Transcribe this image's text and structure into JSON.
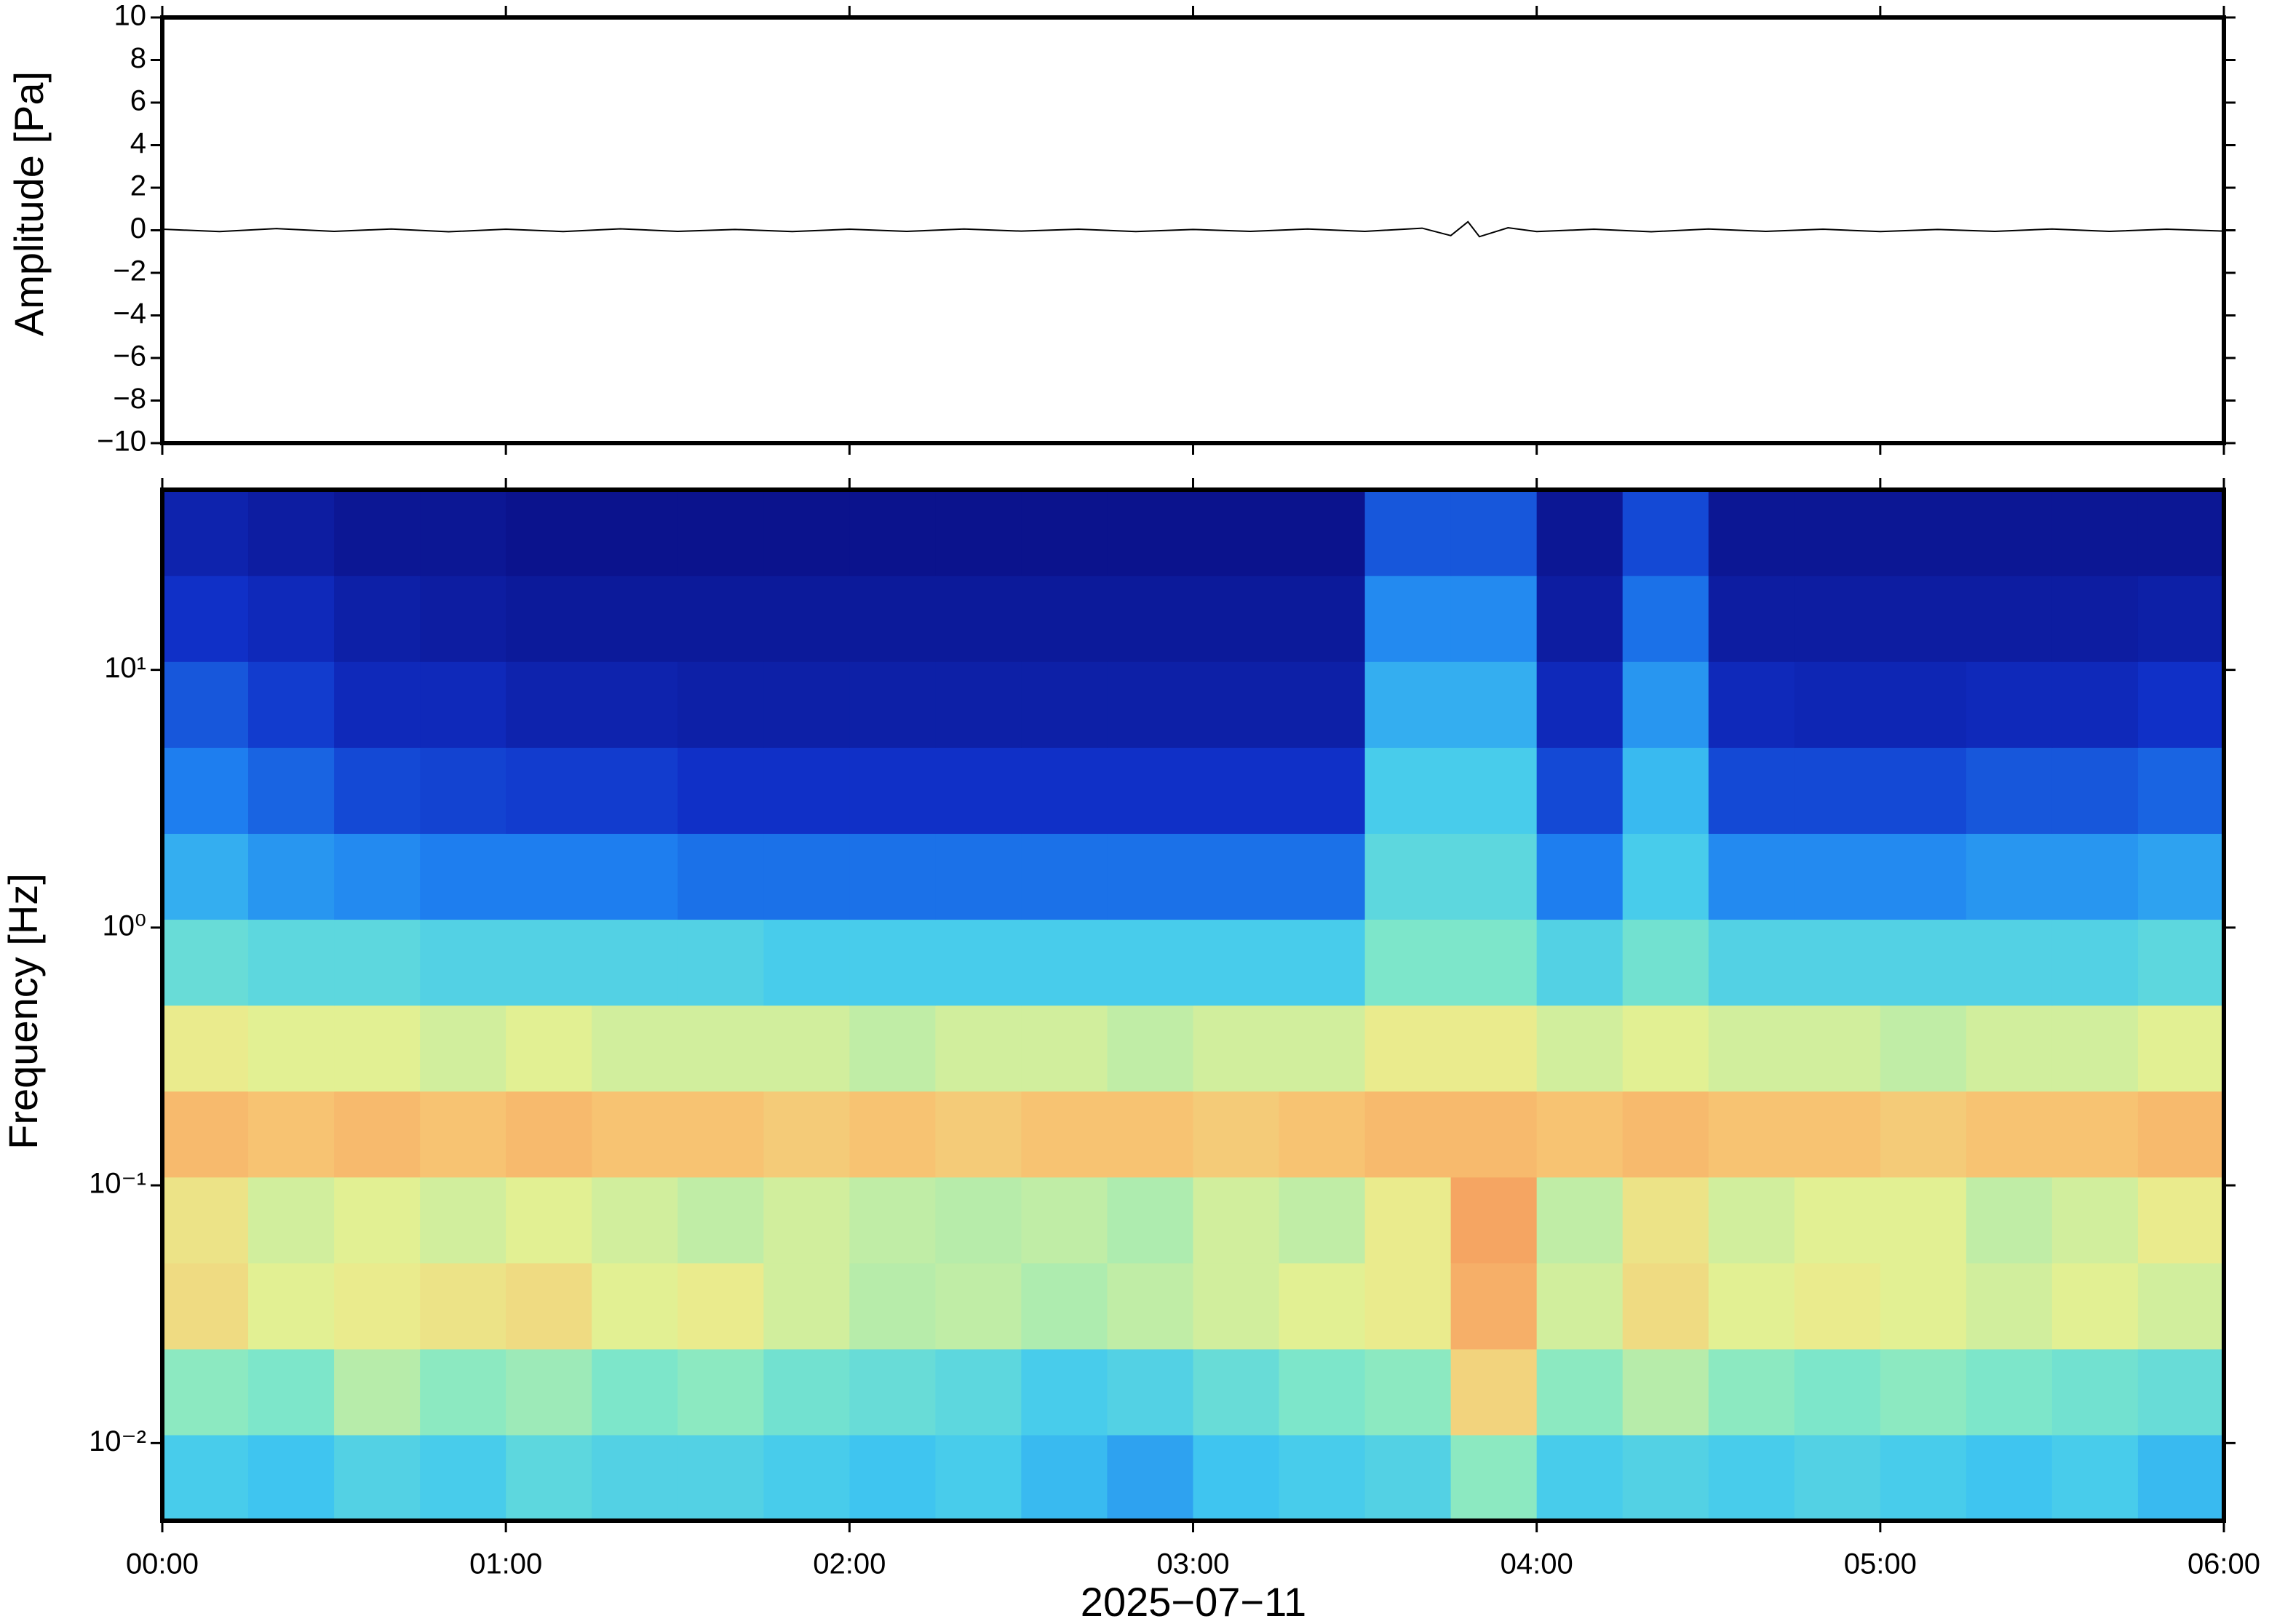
{
  "chart_data": [
    {
      "type": "line",
      "ylabel": "Amplitude [Pa]",
      "color": "#000000",
      "x": [
        "00:00",
        "00:10",
        "00:20",
        "00:30",
        "00:40",
        "00:50",
        "01:00",
        "01:10",
        "01:20",
        "01:30",
        "01:40",
        "01:50",
        "02:00",
        "02:10",
        "02:20",
        "02:30",
        "02:40",
        "02:50",
        "03:00",
        "03:10",
        "03:20",
        "03:30",
        "03:40",
        "03:45",
        "03:48",
        "03:50",
        "03:55",
        "04:00",
        "04:10",
        "04:20",
        "04:30",
        "04:40",
        "04:50",
        "05:00",
        "05:10",
        "05:20",
        "05:30",
        "05:40",
        "05:50",
        "06:00"
      ],
      "values": [
        0.05,
        -0.06,
        0.08,
        -0.05,
        0.06,
        -0.07,
        0.05,
        -0.06,
        0.07,
        -0.05,
        0.04,
        -0.06,
        0.05,
        -0.05,
        0.06,
        -0.04,
        0.05,
        -0.06,
        0.04,
        -0.05,
        0.06,
        -0.05,
        0.1,
        -0.25,
        0.4,
        -0.3,
        0.12,
        -0.06,
        0.05,
        -0.07,
        0.06,
        -0.05,
        0.05,
        -0.06,
        0.04,
        -0.05,
        0.06,
        -0.05,
        0.05,
        -0.04
      ],
      "xlim": [
        "00:00",
        "06:00"
      ],
      "xticks": [
        "00:00",
        "01:00",
        "02:00",
        "03:00",
        "04:00",
        "05:00",
        "06:00"
      ],
      "ylim": [
        -10,
        10
      ],
      "yticks": [
        {
          "value": -10,
          "label": "−10"
        },
        {
          "value": -8,
          "label": "−8"
        },
        {
          "value": -6,
          "label": "−6"
        },
        {
          "value": -4,
          "label": "−4"
        },
        {
          "value": -2,
          "label": "−2"
        },
        0,
        2,
        4,
        6,
        8,
        10
      ]
    },
    {
      "type": "heatmap",
      "ylabel": "Frequency [Hz]",
      "xlabel": "2025−07−11",
      "ylog": true,
      "xlim": [
        "00:00",
        "06:00"
      ],
      "xticks": [
        "00:00",
        "01:00",
        "02:00",
        "03:00",
        "04:00",
        "05:00",
        "06:00"
      ],
      "ylim": [
        0.005,
        50
      ],
      "yticks": [
        {
          "value": 0.01,
          "label": "10⁻²"
        },
        {
          "value": 0.1,
          "label": "10⁻¹"
        },
        {
          "value": 1,
          "label": "10⁰"
        },
        {
          "value": 10,
          "label": "10¹"
        }
      ],
      "x_bins": [
        "00:00",
        "00:15",
        "00:30",
        "00:45",
        "01:00",
        "01:15",
        "01:30",
        "01:45",
        "02:00",
        "02:15",
        "02:30",
        "02:45",
        "03:00",
        "03:15",
        "03:30",
        "03:45",
        "04:00",
        "04:15",
        "04:30",
        "04:45",
        "05:00",
        "05:15",
        "05:30",
        "05:45",
        "06:00"
      ],
      "y_bins": [
        0.005,
        0.01077,
        0.0232,
        0.05,
        0.1077,
        0.232,
        0.5,
        1.077,
        2.32,
        5,
        10.77,
        23.2,
        50
      ],
      "zlim": [
        0,
        0.85
      ],
      "colormap": [
        "#0a0a7a",
        "#1030c8",
        "#1e80f0",
        "#40c8f0",
        "#80e8c8",
        "#e8f090",
        "#f8c070",
        "#f08050"
      ],
      "values": [
        [
          0.38,
          0.36,
          0.4,
          0.38,
          0.42,
          0.4,
          0.4,
          0.38,
          0.36,
          0.38,
          0.34,
          0.3,
          0.36,
          0.38,
          0.4,
          0.5,
          0.38,
          0.4,
          0.38,
          0.4,
          0.38,
          0.36,
          0.38,
          0.34
        ],
        [
          0.5,
          0.48,
          0.55,
          0.5,
          0.52,
          0.48,
          0.5,
          0.46,
          0.44,
          0.42,
          0.38,
          0.4,
          0.44,
          0.48,
          0.5,
          0.68,
          0.5,
          0.55,
          0.5,
          0.48,
          0.5,
          0.48,
          0.46,
          0.44
        ],
        [
          0.66,
          0.6,
          0.62,
          0.64,
          0.66,
          0.6,
          0.62,
          0.58,
          0.55,
          0.56,
          0.54,
          0.56,
          0.58,
          0.6,
          0.62,
          0.76,
          0.58,
          0.66,
          0.6,
          0.62,
          0.6,
          0.58,
          0.6,
          0.58
        ],
        [
          0.64,
          0.58,
          0.6,
          0.58,
          0.6,
          0.58,
          0.56,
          0.58,
          0.56,
          0.55,
          0.56,
          0.54,
          0.58,
          0.56,
          0.62,
          0.78,
          0.56,
          0.64,
          0.58,
          0.6,
          0.6,
          0.56,
          0.58,
          0.62
        ],
        [
          0.74,
          0.72,
          0.74,
          0.72,
          0.74,
          0.72,
          0.72,
          0.7,
          0.72,
          0.7,
          0.72,
          0.72,
          0.7,
          0.72,
          0.74,
          0.74,
          0.72,
          0.74,
          0.72,
          0.72,
          0.7,
          0.72,
          0.72,
          0.74
        ],
        [
          0.62,
          0.6,
          0.6,
          0.58,
          0.6,
          0.58,
          0.58,
          0.58,
          0.56,
          0.58,
          0.58,
          0.56,
          0.58,
          0.58,
          0.62,
          0.62,
          0.58,
          0.6,
          0.58,
          0.58,
          0.56,
          0.58,
          0.58,
          0.6
        ],
        [
          0.44,
          0.42,
          0.42,
          0.4,
          0.4,
          0.4,
          0.4,
          0.38,
          0.38,
          0.38,
          0.38,
          0.38,
          0.38,
          0.38,
          0.48,
          0.48,
          0.4,
          0.46,
          0.4,
          0.4,
          0.4,
          0.4,
          0.4,
          0.42
        ],
        [
          0.32,
          0.28,
          0.26,
          0.24,
          0.24,
          0.24,
          0.22,
          0.22,
          0.22,
          0.22,
          0.22,
          0.22,
          0.22,
          0.22,
          0.42,
          0.42,
          0.24,
          0.38,
          0.26,
          0.26,
          0.26,
          0.28,
          0.28,
          0.3
        ],
        [
          0.24,
          0.2,
          0.16,
          0.15,
          0.14,
          0.14,
          0.12,
          0.12,
          0.12,
          0.12,
          0.12,
          0.12,
          0.12,
          0.12,
          0.38,
          0.38,
          0.16,
          0.34,
          0.16,
          0.16,
          0.16,
          0.18,
          0.18,
          0.2
        ],
        [
          0.18,
          0.14,
          0.1,
          0.1,
          0.08,
          0.08,
          0.07,
          0.07,
          0.07,
          0.07,
          0.07,
          0.07,
          0.07,
          0.07,
          0.32,
          0.32,
          0.1,
          0.28,
          0.1,
          0.09,
          0.09,
          0.1,
          0.1,
          0.12
        ],
        [
          0.12,
          0.1,
          0.07,
          0.06,
          0.05,
          0.05,
          0.05,
          0.05,
          0.05,
          0.05,
          0.05,
          0.05,
          0.05,
          0.05,
          0.26,
          0.26,
          0.06,
          0.22,
          0.06,
          0.06,
          0.06,
          0.06,
          0.06,
          0.07
        ],
        [
          0.08,
          0.06,
          0.04,
          0.04,
          0.03,
          0.03,
          0.03,
          0.03,
          0.03,
          0.03,
          0.03,
          0.03,
          0.03,
          0.03,
          0.18,
          0.18,
          0.04,
          0.16,
          0.04,
          0.04,
          0.04,
          0.04,
          0.04,
          0.04
        ]
      ]
    }
  ]
}
